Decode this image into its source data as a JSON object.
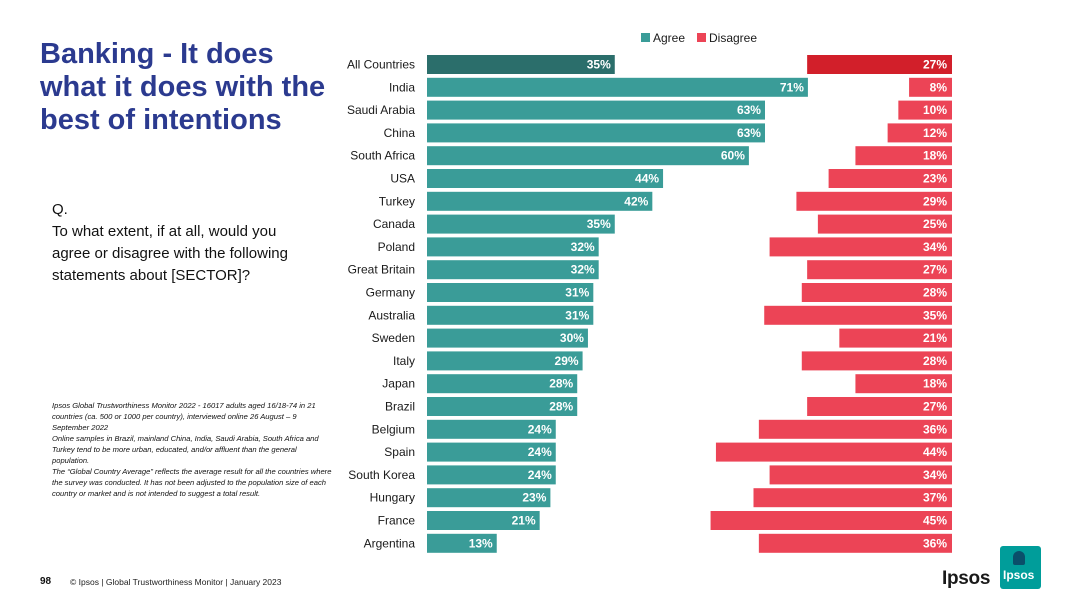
{
  "title": "Banking - It does what it does with the best of intentions",
  "question": {
    "prefix": "Q.",
    "text": "To what extent, if at all, would you agree or disagree with the following statements about [SECTOR]?"
  },
  "note": {
    "line1": "Ipsos Global Trustworthiness Monitor 2022 - 16017 adults aged 16/18-74 in 21 countries (ca. 500 or 1000 per country), interviewed online 26 August – 9 September 2022",
    "line2": "Online samples in Brazil, mainland China, India, Saudi Arabia, South Africa and Turkey tend to be more urban, educated, and/or affluent than the general population.",
    "line3": "The “Global Country Average” reflects the average result for all the countries where the survey was conducted. It has not been adjusted to the population size of each country or market and is not intended to suggest a total result."
  },
  "footer": {
    "page_number": "98",
    "text": "© Ipsos | Global Trustworthiness Monitor | January 2023",
    "brand": "Ipsos",
    "logo_text": "Ipsos"
  },
  "colors": {
    "agree": "#3a9c98",
    "agree_highlight": "#2b6e6b",
    "disagree": "#ec4456",
    "disagree_highlight": "#d21f2a"
  },
  "chart_data": {
    "type": "bar",
    "title": "",
    "xlabel": "",
    "ylabel": "",
    "xlim": [
      0,
      100
    ],
    "legend_position": "top",
    "categories": [
      "All Countries",
      "India",
      "Saudi Arabia",
      "China",
      "South Africa",
      "USA",
      "Turkey",
      "Canada",
      "Poland",
      "Great Britain",
      "Germany",
      "Australia",
      "Sweden",
      "Italy",
      "Japan",
      "Brazil",
      "Belgium",
      "Spain",
      "South Korea",
      "Hungary",
      "France",
      "Argentina"
    ],
    "series": [
      {
        "name": "Agree",
        "values": [
          35,
          71,
          63,
          63,
          60,
          44,
          42,
          35,
          32,
          32,
          31,
          31,
          30,
          29,
          28,
          28,
          24,
          24,
          24,
          23,
          21,
          13
        ],
        "labels": [
          "35%",
          "71%",
          "63%",
          "63%",
          "60%",
          "44%",
          "42%",
          "35%",
          "32%",
          "32%",
          "31%",
          "31%",
          "30%",
          "29%",
          "28%",
          "28%",
          "24%",
          "24%",
          "24%",
          "23%",
          "21%",
          "13%"
        ]
      },
      {
        "name": "Disagree",
        "values": [
          27,
          8,
          10,
          12,
          18,
          23,
          29,
          25,
          34,
          27,
          28,
          35,
          21,
          28,
          18,
          27,
          36,
          44,
          34,
          37,
          45,
          36
        ],
        "labels": [
          "27%",
          "8%",
          "10%",
          "12%",
          "18%",
          "23%",
          "29%",
          "25%",
          "34%",
          "27%",
          "28%",
          "35%",
          "21%",
          "28%",
          "18%",
          "27%",
          "36%",
          "44%",
          "34%",
          "37%",
          "45%",
          "36%"
        ]
      }
    ]
  }
}
